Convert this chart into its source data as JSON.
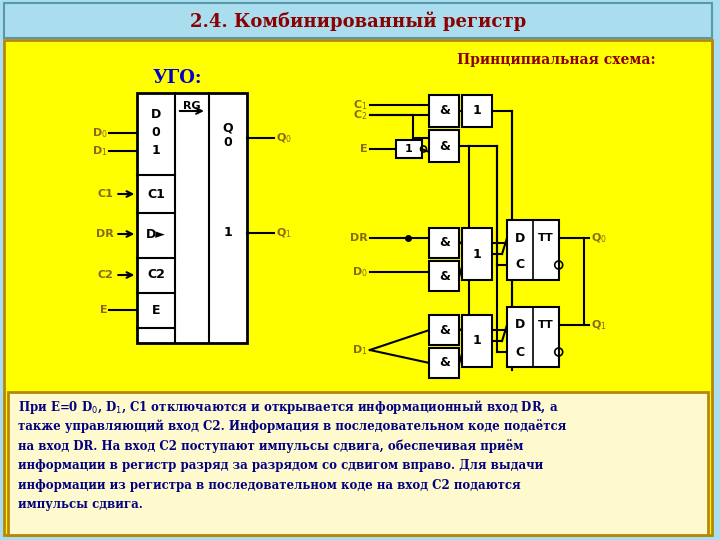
{
  "title": "2.4. Комбинированный регистр",
  "title_color": "#8B0000",
  "title_bg": "#AADDEE",
  "main_bg": "#FFFF00",
  "border_color": "#B8860B",
  "text_color_olive": "#8B6914",
  "blue_label": "#0000CC",
  "body_lines": [
    "При E=0 D₀, D₁, C1 отключаются и открывается информационный вход DR, а",
    "также управляющий вход C2. Информация в последовательном коде подаётся",
    "на вход DR. На вход C2 поступают импульсы сдвига, обеспечивая приём",
    "информации в регистр разряд за разрядом со сдвигом вправо. Для выдачи",
    "информации из регистра в последовательном коде на вход C2 подаются",
    "импульсы сдвига."
  ],
  "schema_label": "Принципиальная схема:",
  "ugo_label": "УГО:"
}
